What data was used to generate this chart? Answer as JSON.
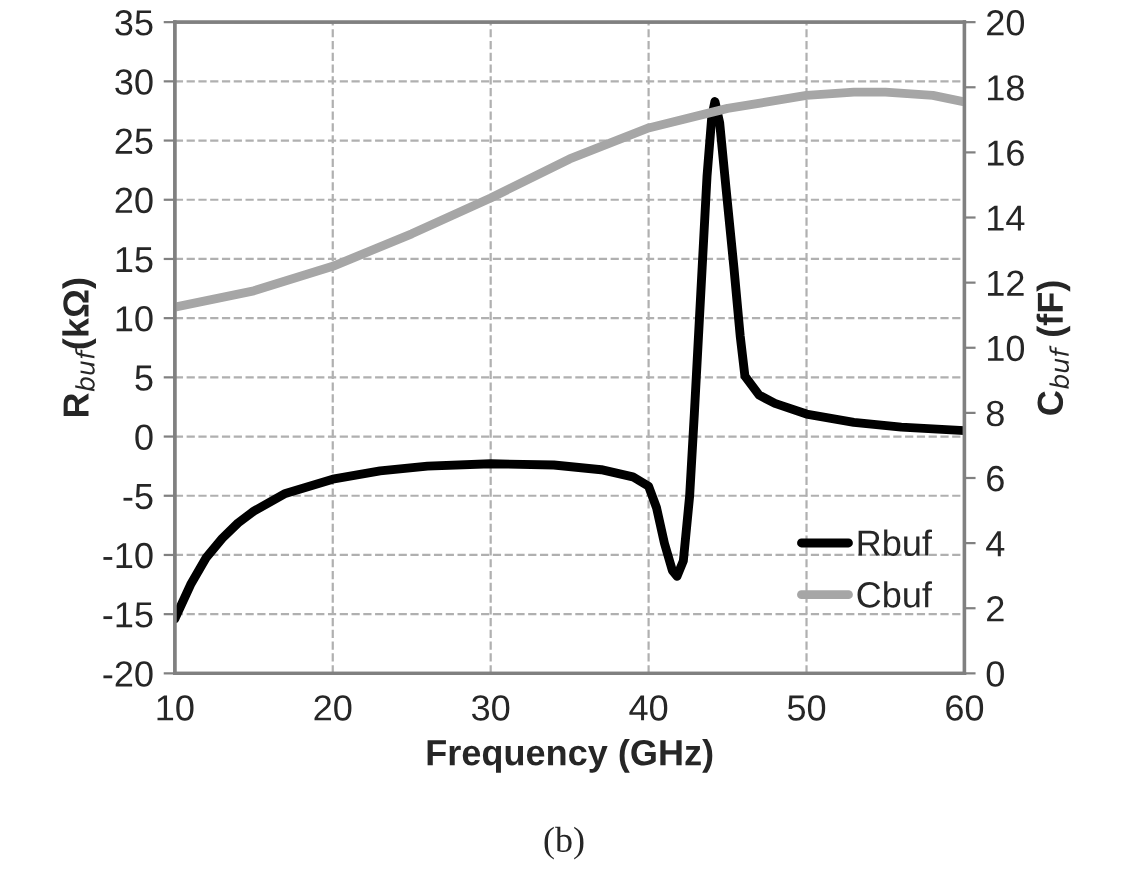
{
  "chart_data": {
    "type": "line",
    "xlabel": "Frequency (GHz)",
    "ylabel": "R$_{buf}$(kΩ)",
    "y2label": "C$_{buf}$ (fF)",
    "annotations": [
      "(b)"
    ],
    "xlim": [
      10,
      60
    ],
    "xticks": [
      10,
      20,
      30,
      40,
      50,
      60
    ],
    "ylim": [
      -20,
      35
    ],
    "yticks": [
      -20,
      -15,
      -10,
      -5,
      0,
      5,
      10,
      15,
      20,
      25,
      30,
      35
    ],
    "y2lim": [
      0,
      20
    ],
    "y2ticks": [
      0,
      2,
      4,
      6,
      8,
      10,
      12,
      14,
      16,
      18,
      20
    ],
    "grid": true,
    "legend": "bottom right",
    "line_style": "solid",
    "marker": "none",
    "series": [
      {
        "name": "Rbuf",
        "color": "#000000",
        "x": [
          10,
          11,
          12,
          13,
          14,
          15,
          17,
          20,
          23,
          26,
          30,
          34,
          37,
          39,
          40,
          40.5,
          41,
          41.5,
          41.8,
          42.2,
          42.6,
          42.9,
          43.3,
          43.7,
          44.0,
          44.2,
          44.5,
          44.9,
          45.4,
          45.8,
          46.1,
          47,
          48,
          50,
          53,
          56,
          60
        ],
        "values": [
          -15.4,
          -12.5,
          -10.2,
          -8.6,
          -7.3,
          -6.3,
          -4.8,
          -3.6,
          -2.9,
          -2.5,
          -2.3,
          -2.4,
          -2.8,
          -3.4,
          -4.2,
          -6.0,
          -9.0,
          -11.3,
          -11.8,
          -10.5,
          -5.0,
          2.0,
          12.0,
          22.0,
          27.0,
          28.3,
          26.5,
          21.0,
          14.3,
          8.5,
          5.1,
          3.5,
          2.8,
          1.9,
          1.2,
          0.8,
          0.5
        ]
      },
      {
        "name": "Cbuf",
        "color": "#a6a6a6",
        "axis": "y2",
        "x": [
          10,
          15,
          20,
          25,
          30,
          35,
          40,
          45,
          50,
          53,
          55,
          58,
          60
        ],
        "values": [
          11.25,
          11.75,
          12.5,
          13.5,
          14.6,
          15.8,
          16.75,
          17.35,
          17.75,
          17.85,
          17.85,
          17.75,
          17.55
        ]
      }
    ]
  }
}
